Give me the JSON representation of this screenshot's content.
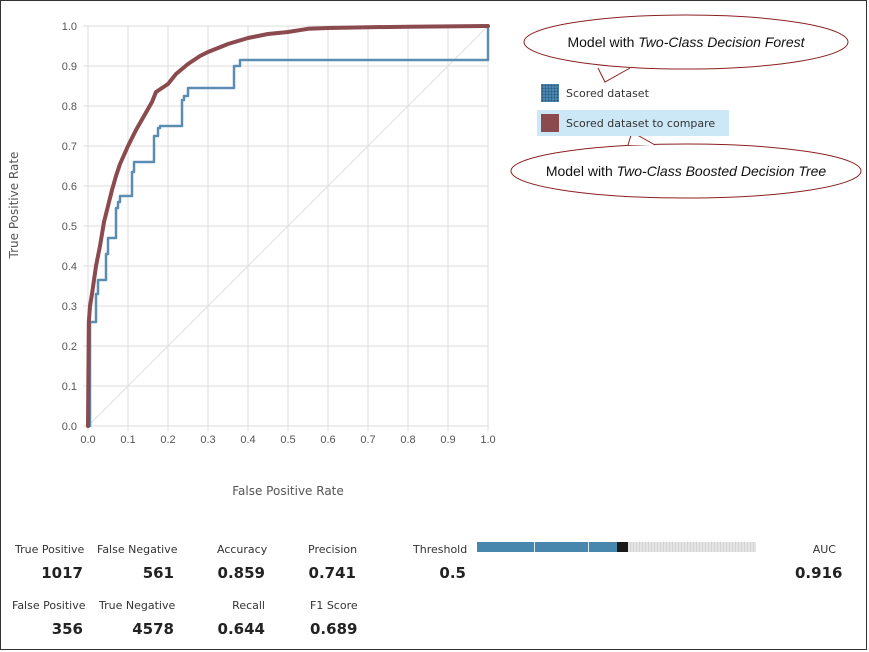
{
  "chart_data": {
    "type": "line",
    "xlabel": "False Positive Rate",
    "ylabel": "True Positive Rate",
    "xlim": [
      0,
      1
    ],
    "ylim": [
      0,
      1
    ],
    "grid": true,
    "x_ticks": [
      "0.0",
      "0.1",
      "0.2",
      "0.3",
      "0.4",
      "0.5",
      "0.6",
      "0.7",
      "0.8",
      "0.9",
      "1.0"
    ],
    "y_ticks": [
      "0.0",
      "0.1",
      "0.2",
      "0.3",
      "0.4",
      "0.5",
      "0.6",
      "0.7",
      "0.8",
      "0.9",
      "1.0"
    ],
    "legend_placement": "right",
    "series": [
      {
        "name": "Scored dataset",
        "color": "#5b8db3",
        "style": "step",
        "points": [
          [
            0.0,
            0.0
          ],
          [
            0.005,
            0.0
          ],
          [
            0.005,
            0.26
          ],
          [
            0.02,
            0.26
          ],
          [
            0.02,
            0.33
          ],
          [
            0.025,
            0.33
          ],
          [
            0.025,
            0.365
          ],
          [
            0.045,
            0.365
          ],
          [
            0.045,
            0.43
          ],
          [
            0.05,
            0.43
          ],
          [
            0.05,
            0.47
          ],
          [
            0.07,
            0.47
          ],
          [
            0.07,
            0.545
          ],
          [
            0.075,
            0.545
          ],
          [
            0.075,
            0.56
          ],
          [
            0.08,
            0.56
          ],
          [
            0.08,
            0.575
          ],
          [
            0.11,
            0.575
          ],
          [
            0.11,
            0.635
          ],
          [
            0.115,
            0.635
          ],
          [
            0.115,
            0.66
          ],
          [
            0.165,
            0.66
          ],
          [
            0.165,
            0.725
          ],
          [
            0.175,
            0.725
          ],
          [
            0.175,
            0.745
          ],
          [
            0.18,
            0.745
          ],
          [
            0.18,
            0.75
          ],
          [
            0.235,
            0.75
          ],
          [
            0.235,
            0.815
          ],
          [
            0.24,
            0.815
          ],
          [
            0.24,
            0.825
          ],
          [
            0.25,
            0.825
          ],
          [
            0.25,
            0.845
          ],
          [
            0.365,
            0.845
          ],
          [
            0.365,
            0.9
          ],
          [
            0.38,
            0.9
          ],
          [
            0.38,
            0.915
          ],
          [
            1.0,
            0.915
          ],
          [
            1.0,
            1.0
          ]
        ]
      },
      {
        "name": "Scored dataset to compare",
        "color": "#8b4a4e",
        "style": "smooth",
        "points": [
          [
            0.0,
            0.0
          ],
          [
            0.002,
            0.26
          ],
          [
            0.005,
            0.3
          ],
          [
            0.01,
            0.33
          ],
          [
            0.02,
            0.4
          ],
          [
            0.03,
            0.45
          ],
          [
            0.04,
            0.51
          ],
          [
            0.05,
            0.55
          ],
          [
            0.06,
            0.59
          ],
          [
            0.07,
            0.625
          ],
          [
            0.08,
            0.655
          ],
          [
            0.1,
            0.7
          ],
          [
            0.12,
            0.74
          ],
          [
            0.14,
            0.775
          ],
          [
            0.16,
            0.81
          ],
          [
            0.17,
            0.835
          ],
          [
            0.2,
            0.855
          ],
          [
            0.22,
            0.88
          ],
          [
            0.25,
            0.905
          ],
          [
            0.28,
            0.925
          ],
          [
            0.3,
            0.935
          ],
          [
            0.35,
            0.955
          ],
          [
            0.4,
            0.97
          ],
          [
            0.45,
            0.98
          ],
          [
            0.5,
            0.985
          ],
          [
            0.55,
            0.993
          ],
          [
            0.6,
            0.995
          ],
          [
            0.7,
            0.997
          ],
          [
            0.8,
            0.998
          ],
          [
            0.9,
            0.999
          ],
          [
            1.0,
            1.0
          ]
        ]
      },
      {
        "name": "",
        "color": "#e0e0e0",
        "style": "diagonal",
        "points": [
          [
            0,
            0
          ],
          [
            1,
            1
          ]
        ]
      }
    ],
    "annotations": [
      {
        "prefix": "Model with ",
        "italic": "Two-Class Decision Forest"
      },
      {
        "prefix": "Model with ",
        "italic": "Two-Class Boosted Decision Tree"
      }
    ]
  },
  "legend": {
    "items": [
      {
        "label": "Scored dataset"
      },
      {
        "label": "Scored dataset to compare"
      }
    ]
  },
  "metrics": {
    "true_positive": {
      "label": "True Positive",
      "value": "1017"
    },
    "false_negative": {
      "label": "False Negative",
      "value": "561"
    },
    "accuracy": {
      "label": "Accuracy",
      "value": "0.859"
    },
    "precision": {
      "label": "Precision",
      "value": "0.741"
    },
    "false_positive": {
      "label": "False Positive",
      "value": "356"
    },
    "true_negative": {
      "label": "True Negative",
      "value": "4578"
    },
    "recall": {
      "label": "Recall",
      "value": "0.644"
    },
    "f1_score": {
      "label": "F1 Score",
      "value": "0.689"
    },
    "threshold": {
      "label": "Threshold",
      "value": "0.5",
      "slider_fraction": 0.5
    },
    "auc": {
      "label": "AUC",
      "value": "0.916"
    }
  }
}
